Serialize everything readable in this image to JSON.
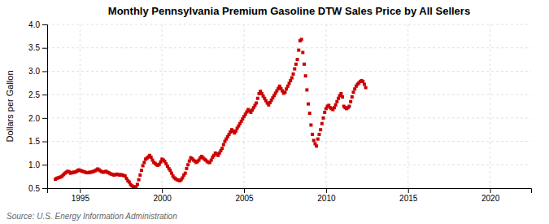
{
  "chart_data": {
    "type": "scatter",
    "title": "Monthly Pennsylvania Premium Gasoline DTW Sales Price by All Sellers",
    "y_label": "Dollars per Gallon",
    "annotations": [
      "Source: U.S. Energy Information Administration"
    ],
    "color": "#cc0000",
    "marker": "square",
    "grid": true,
    "xlim": [
      1993,
      2022.5
    ],
    "xticks": [
      1995,
      2000,
      2005,
      2010,
      2015,
      2020
    ],
    "ylim": [
      0.5,
      4.0
    ],
    "yticks": [
      0.5,
      {
        "value": 1.0,
        "label": "1.0"
      },
      1.5,
      {
        "value": 2.0,
        "label": "2.0"
      },
      2.5,
      {
        "value": 3.0,
        "label": "3.0"
      },
      3.5,
      {
        "value": 4.0,
        "label": "4.0"
      }
    ],
    "x": [
      1993.5,
      1993.5833333333333,
      1993.6666666666667,
      1993.75,
      1993.8333333333333,
      1993.9166666666667,
      1994,
      1994.0833333333333,
      1994.1666666666667,
      1994.25,
      1994.3333333333333,
      1994.4166666666667,
      1994.5,
      1994.5833333333333,
      1994.6666666666667,
      1994.75,
      1994.8333333333333,
      1994.9166666666667,
      1995,
      1995.0833333333333,
      1995.1666666666667,
      1995.25,
      1995.3333333333333,
      1995.4166666666667,
      1995.5,
      1995.5833333333333,
      1995.6666666666667,
      1995.75,
      1995.8333333333333,
      1995.9166666666667,
      1996,
      1996.0833333333333,
      1996.1666666666667,
      1996.25,
      1996.3333333333333,
      1996.4166666666667,
      1996.5,
      1996.5833333333333,
      1996.6666666666667,
      1996.75,
      1996.8333333333333,
      1996.9166666666667,
      1997,
      1997.0833333333333,
      1997.1666666666667,
      1997.25,
      1997.3333333333333,
      1997.4166666666667,
      1997.5,
      1997.5833333333333,
      1997.6666666666667,
      1997.75,
      1997.8333333333333,
      1997.9166666666667,
      1998,
      1998.0833333333333,
      1998.1666666666667,
      1998.25,
      1998.3333333333333,
      1998.4166666666667,
      1998.5,
      1998.5833333333333,
      1998.6666666666667,
      1998.75,
      1998.8333333333333,
      1998.9166666666667,
      1999,
      1999.0833333333333,
      1999.1666666666667,
      1999.25,
      1999.3333333333333,
      1999.4166666666667,
      1999.5,
      1999.5833333333333,
      1999.6666666666667,
      1999.75,
      1999.8333333333333,
      1999.9166666666667,
      2000,
      2000.0833333333333,
      2000.1666666666667,
      2000.25,
      2000.3333333333333,
      2000.4166666666667,
      2000.5,
      2000.5833333333333,
      2000.6666666666667,
      2000.75,
      2000.8333333333333,
      2000.9166666666667,
      2001,
      2001.0833333333333,
      2001.1666666666667,
      2001.25,
      2001.3333333333333,
      2001.4166666666667,
      2001.5,
      2001.5833333333333,
      2001.6666666666667,
      2001.75,
      2001.8333333333333,
      2001.9166666666667,
      2002,
      2002.0833333333333,
      2002.1666666666667,
      2002.25,
      2002.3333333333333,
      2002.4166666666667,
      2002.5,
      2002.5833333333333,
      2002.6666666666667,
      2002.75,
      2002.8333333333333,
      2002.9166666666667,
      2003,
      2003.0833333333333,
      2003.1666666666667,
      2003.25,
      2003.3333333333333,
      2003.4166666666667,
      2003.5,
      2003.5833333333333,
      2003.6666666666667,
      2003.75,
      2003.8333333333333,
      2003.9166666666667,
      2004,
      2004.0833333333333,
      2004.1666666666667,
      2004.25,
      2004.3333333333333,
      2004.4166666666667,
      2004.5,
      2004.5833333333333,
      2004.6666666666667,
      2004.75,
      2004.8333333333333,
      2004.9166666666667,
      2005,
      2005.0833333333333,
      2005.1666666666667,
      2005.25,
      2005.3333333333333,
      2005.4166666666667,
      2005.5,
      2005.5833333333333,
      2005.6666666666667,
      2005.75,
      2005.8333333333333,
      2005.9166666666667,
      2006,
      2006.0833333333333,
      2006.1666666666667,
      2006.25,
      2006.3333333333333,
      2006.4166666666667,
      2006.5,
      2006.5833333333333,
      2006.6666666666667,
      2006.75,
      2006.8333333333333,
      2006.9166666666667,
      2007,
      2007.0833333333333,
      2007.1666666666667,
      2007.25,
      2007.3333333333333,
      2007.4166666666667,
      2007.5,
      2007.5833333333333,
      2007.6666666666667,
      2007.75,
      2007.8333333333333,
      2007.9166666666667,
      2008,
      2008.0833333333333,
      2008.1666666666667,
      2008.25,
      2008.3333333333333,
      2008.4166666666667,
      2008.5,
      2008.5833333333333,
      2008.6666666666667,
      2008.75,
      2008.8333333333333,
      2008.9166666666667,
      2009,
      2009.0833333333333,
      2009.1666666666667,
      2009.25,
      2009.3333333333333,
      2009.4166666666667,
      2009.5,
      2009.5833333333333,
      2009.6666666666667,
      2009.75,
      2009.8333333333333,
      2009.9166666666667,
      2010,
      2010.0833333333333,
      2010.1666666666667,
      2010.25,
      2010.3333333333333,
      2010.4166666666667,
      2010.5,
      2010.5833333333333,
      2010.6666666666667,
      2010.75,
      2010.8333333333333,
      2010.9166666666667,
      2011,
      2011.0833333333333,
      2011.1666666666667,
      2011.25,
      2011.3333333333333,
      2011.4166666666667,
      2011.5,
      2011.5833333333333,
      2011.6666666666667,
      2011.75,
      2011.8333333333333,
      2011.9166666666667,
      2012,
      2012.0833333333333,
      2012.1666666666667,
      2012.25,
      2012.3333333333333,
      2012.4166666666667
    ],
    "values": [
      0.69,
      0.71,
      0.72,
      0.73,
      0.74,
      0.76,
      0.79,
      0.82,
      0.84,
      0.86,
      0.85,
      0.82,
      0.83,
      0.84,
      0.84,
      0.85,
      0.87,
      0.89,
      0.88,
      0.87,
      0.86,
      0.85,
      0.84,
      0.83,
      0.83,
      0.84,
      0.84,
      0.85,
      0.86,
      0.87,
      0.89,
      0.91,
      0.89,
      0.87,
      0.85,
      0.84,
      0.85,
      0.86,
      0.84,
      0.83,
      0.81,
      0.8,
      0.79,
      0.78,
      0.79,
      0.8,
      0.79,
      0.78,
      0.79,
      0.78,
      0.77,
      0.76,
      0.71,
      0.66,
      0.63,
      0.58,
      0.55,
      0.53,
      0.52,
      0.53,
      0.58,
      0.68,
      0.78,
      0.88,
      0.98,
      1.05,
      1.12,
      1.14,
      1.17,
      1.2,
      1.16,
      1.1,
      1.05,
      1.03,
      1.0,
      0.99,
      1.01,
      1.06,
      1.12,
      1.1,
      1.07,
      1.02,
      0.97,
      0.92,
      0.88,
      0.82,
      0.76,
      0.72,
      0.7,
      0.68,
      0.67,
      0.66,
      0.68,
      0.72,
      0.78,
      0.82,
      0.92,
      1.0,
      1.08,
      1.15,
      1.13,
      1.1,
      1.08,
      1.05,
      1.07,
      1.1,
      1.15,
      1.18,
      1.15,
      1.12,
      1.1,
      1.07,
      1.05,
      1.05,
      1.1,
      1.16,
      1.2,
      1.25,
      1.23,
      1.2,
      1.25,
      1.3,
      1.35,
      1.43,
      1.5,
      1.55,
      1.6,
      1.65,
      1.7,
      1.75,
      1.72,
      1.68,
      1.72,
      1.78,
      1.83,
      1.88,
      1.93,
      1.98,
      2.03,
      2.08,
      2.13,
      2.18,
      2.15,
      2.12,
      2.17,
      2.22,
      2.27,
      2.32,
      2.42,
      2.52,
      2.57,
      2.52,
      2.47,
      2.42,
      2.37,
      2.32,
      2.28,
      2.33,
      2.38,
      2.43,
      2.48,
      2.53,
      2.58,
      2.63,
      2.68,
      2.63,
      2.58,
      2.53,
      2.55,
      2.62,
      2.68,
      2.74,
      2.8,
      2.86,
      2.94,
      3.05,
      3.15,
      3.25,
      3.45,
      3.65,
      3.68,
      3.4,
      3.15,
      2.9,
      2.6,
      2.3,
      2.1,
      1.85,
      1.65,
      1.52,
      1.45,
      1.4,
      1.55,
      1.65,
      1.75,
      1.88,
      2.0,
      2.12,
      2.2,
      2.25,
      2.27,
      2.22,
      2.2,
      2.18,
      2.22,
      2.28,
      2.35,
      2.42,
      2.48,
      2.52,
      2.45,
      2.25,
      2.22,
      2.2,
      2.22,
      2.25,
      2.35,
      2.45,
      2.55,
      2.62,
      2.68,
      2.72,
      2.75,
      2.78,
      2.8,
      2.78,
      2.72,
      2.65
    ]
  }
}
